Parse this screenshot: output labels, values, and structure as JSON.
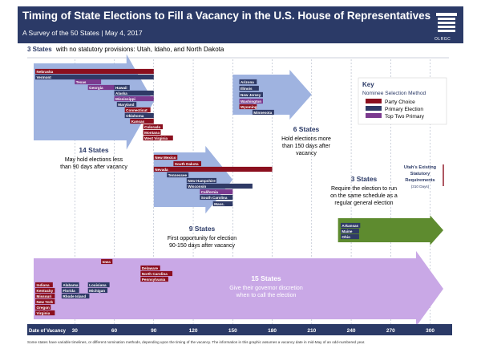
{
  "header": {
    "title": "Timing of State Elections to Fill a Vacancy in the U.S. House of Representatives",
    "subtitle": "A Survey of the 50 States  |  May 4, 2017",
    "logo_text": "OLRGC"
  },
  "note": {
    "count": "3 States",
    "text": "with no statutory provisions: Utah, Idaho, and North Dakota"
  },
  "key": {
    "title": "Key",
    "subtitle": "Nominee Selection Method",
    "items": [
      {
        "label": "Party Choice",
        "color": "#8b0f1e"
      },
      {
        "label": "Primary Election",
        "color": "#2f3a66"
      },
      {
        "label": "Top Two Primary",
        "color": "#7b3a8f"
      }
    ]
  },
  "utah": {
    "lines": [
      "Utah's Existing",
      "Statutory",
      "Requirements",
      "(310 Days)"
    ],
    "days": 310
  },
  "chart_data": {
    "type": "bar",
    "xlabel": "Date of Vacancy",
    "xlim": [
      0,
      310
    ],
    "xticks": [
      30,
      60,
      90,
      120,
      150,
      180,
      210,
      240,
      270,
      300
    ],
    "groups": [
      {
        "id": "g14",
        "count": "14 States",
        "desc": [
          "May hold elections less",
          "than 90 days after  vacancy"
        ],
        "range": [
          0,
          90
        ]
      },
      {
        "id": "g6",
        "count": "6 States",
        "desc": [
          "Hold elections more",
          "than 150 days after",
          "vacancy"
        ],
        "range": [
          150,
          210
        ]
      },
      {
        "id": "g9",
        "count": "9 States",
        "desc": [
          "First  opportunity for election",
          "90-150 days after vacancy"
        ],
        "range": [
          90,
          150
        ]
      },
      {
        "id": "g3",
        "count": "3 States",
        "desc": [
          "Require the election to run",
          "on the same schedule as a",
          "regular general election"
        ],
        "range": [
          230,
          310
        ]
      },
      {
        "id": "g15",
        "count": "15 States",
        "desc": [
          "Give their governor  discretion",
          "when to call the election"
        ],
        "range": [
          0,
          310
        ]
      }
    ],
    "states": [
      {
        "name": "Nebraska",
        "start": 0,
        "end": 90,
        "method": "party"
      },
      {
        "name": "Vermont",
        "start": 0,
        "end": 90,
        "method": "primary"
      },
      {
        "name": "Texas",
        "start": 30,
        "end": 50,
        "method": "top2"
      },
      {
        "name": "Georgia",
        "start": 40,
        "end": 60,
        "method": "top2"
      },
      {
        "name": "Hawaii",
        "start": 60,
        "end": 60,
        "method": "primary"
      },
      {
        "name": "Alaska",
        "start": 60,
        "end": 90,
        "method": "primary"
      },
      {
        "name": "Mississippi",
        "start": 60,
        "end": 90,
        "method": "top2"
      },
      {
        "name": "Maryland",
        "start": 62,
        "end": 62,
        "method": "primary"
      },
      {
        "name": "Connecticut",
        "start": 68,
        "end": 68,
        "method": "party"
      },
      {
        "name": "Oklahoma",
        "start": 68,
        "end": 90,
        "method": "primary"
      },
      {
        "name": "Kansas",
        "start": 72,
        "end": 90,
        "method": "party"
      },
      {
        "name": "Colorado",
        "start": 82,
        "end": 90,
        "method": "party"
      },
      {
        "name": "Montana",
        "start": 82,
        "end": 90,
        "method": "party"
      },
      {
        "name": "West Virginia",
        "start": 82,
        "end": 90,
        "method": "party"
      },
      {
        "name": "Arizona",
        "start": 155,
        "end": 155,
        "method": "primary"
      },
      {
        "name": "Illinois",
        "start": 155,
        "end": 155,
        "method": "primary"
      },
      {
        "name": "New Jersey",
        "start": 155,
        "end": 155,
        "method": "primary"
      },
      {
        "name": "Washington",
        "start": 155,
        "end": 155,
        "method": "top2"
      },
      {
        "name": "Wyoming",
        "start": 155,
        "end": 155,
        "method": "party"
      },
      {
        "name": "Minnesota",
        "start": 165,
        "end": 165,
        "method": "primary"
      },
      {
        "name": "New Mexico",
        "start": 90,
        "end": 90,
        "method": "party"
      },
      {
        "name": "South Dakota",
        "start": 105,
        "end": 105,
        "method": "party"
      },
      {
        "name": "Nevada",
        "start": 90,
        "end": 180,
        "method": "party"
      },
      {
        "name": "Tennessee",
        "start": 100,
        "end": 100,
        "method": "primary"
      },
      {
        "name": "New Hampshire",
        "start": 115,
        "end": 130,
        "method": "primary"
      },
      {
        "name": "Wisconsin",
        "start": 115,
        "end": 165,
        "method": "primary"
      },
      {
        "name": "California",
        "start": 125,
        "end": 150,
        "method": "top2"
      },
      {
        "name": "South Carolina",
        "start": 125,
        "end": 150,
        "method": "primary"
      },
      {
        "name": "Mass.",
        "start": 135,
        "end": 150,
        "method": "primary"
      },
      {
        "name": "Arkansas",
        "start": 232,
        "end": 246,
        "method": "primary"
      },
      {
        "name": "Maine",
        "start": 232,
        "end": 246,
        "method": "primary"
      },
      {
        "name": "Ohio",
        "start": 232,
        "end": 246,
        "method": "primary"
      },
      {
        "name": "Iowa",
        "start": 50,
        "end": 50,
        "method": "party"
      },
      {
        "name": "Delaware",
        "start": 80,
        "end": 80,
        "method": "party"
      },
      {
        "name": "North Carolina",
        "start": 80,
        "end": 80,
        "method": "party"
      },
      {
        "name": "Pennsylvania",
        "start": 80,
        "end": 80,
        "method": "party"
      },
      {
        "name": "Indiana",
        "start": 0,
        "end": 0,
        "method": "party"
      },
      {
        "name": "Kentucky",
        "start": 0,
        "end": 0,
        "method": "party"
      },
      {
        "name": "Missouri",
        "start": 0,
        "end": 0,
        "method": "party"
      },
      {
        "name": "New York",
        "start": 0,
        "end": 0,
        "method": "party"
      },
      {
        "name": "Oregon",
        "start": 0,
        "end": 0,
        "method": "party"
      },
      {
        "name": "Virginia",
        "start": 0,
        "end": 0,
        "method": "party"
      },
      {
        "name": "Alabama",
        "start": 20,
        "end": 20,
        "method": "primary"
      },
      {
        "name": "Florida",
        "start": 20,
        "end": 20,
        "method": "primary"
      },
      {
        "name": "Rhode Island",
        "start": 20,
        "end": 20,
        "method": "primary"
      },
      {
        "name": "Louisiana",
        "start": 40,
        "end": 40,
        "method": "primary"
      },
      {
        "name": "Michigan",
        "start": 40,
        "end": 40,
        "method": "primary"
      }
    ]
  },
  "footnote": "Some states have variable timelines, or different nomination methods, depending upon the timing of the vacancy. The information in this graphic assumes a vacancy date in mid-May of an odd-numbered year."
}
